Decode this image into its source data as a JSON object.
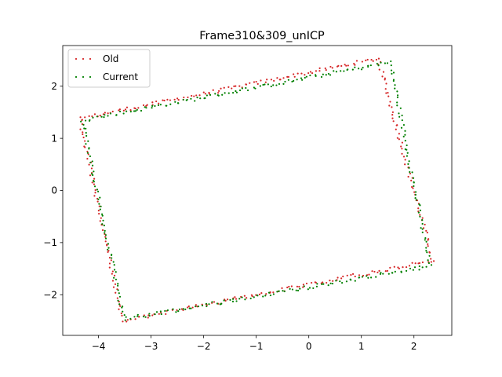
{
  "chart_data": {
    "type": "scatter",
    "title": "Frame310&309_unICP",
    "xlabel": "",
    "ylabel": "",
    "xlim": [
      -4.68,
      2.72
    ],
    "ylim": [
      -2.78,
      2.78
    ],
    "xticks": [
      -4,
      -3,
      -2,
      -1,
      0,
      1,
      2
    ],
    "yticks": [
      -2,
      -1,
      0,
      1,
      2
    ],
    "tick_labels_x": [
      "−4",
      "−3",
      "−2",
      "−1",
      "0",
      "1",
      "2"
    ],
    "tick_labels_y": [
      "−2",
      "−1",
      "0",
      "1",
      "2"
    ],
    "grid": false,
    "legend_position": "upper left",
    "series": [
      {
        "name": "Old",
        "color": "#d62728",
        "corners": [
          [
            -3.55,
            -2.5
          ],
          [
            -4.35,
            1.38
          ],
          [
            1.32,
            2.53
          ],
          [
            2.36,
            -1.34
          ],
          [
            -3.55,
            -2.5
          ]
        ],
        "counts": [
          60,
          105,
          62,
          102
        ]
      },
      {
        "name": "Current",
        "color": "#008000",
        "corners": [
          [
            -3.52,
            -2.47
          ],
          [
            -4.3,
            1.35
          ],
          [
            1.55,
            2.46
          ],
          [
            2.3,
            -1.45
          ],
          [
            -3.52,
            -2.47
          ]
        ],
        "counts": [
          60,
          105,
          62,
          102
        ]
      }
    ]
  }
}
